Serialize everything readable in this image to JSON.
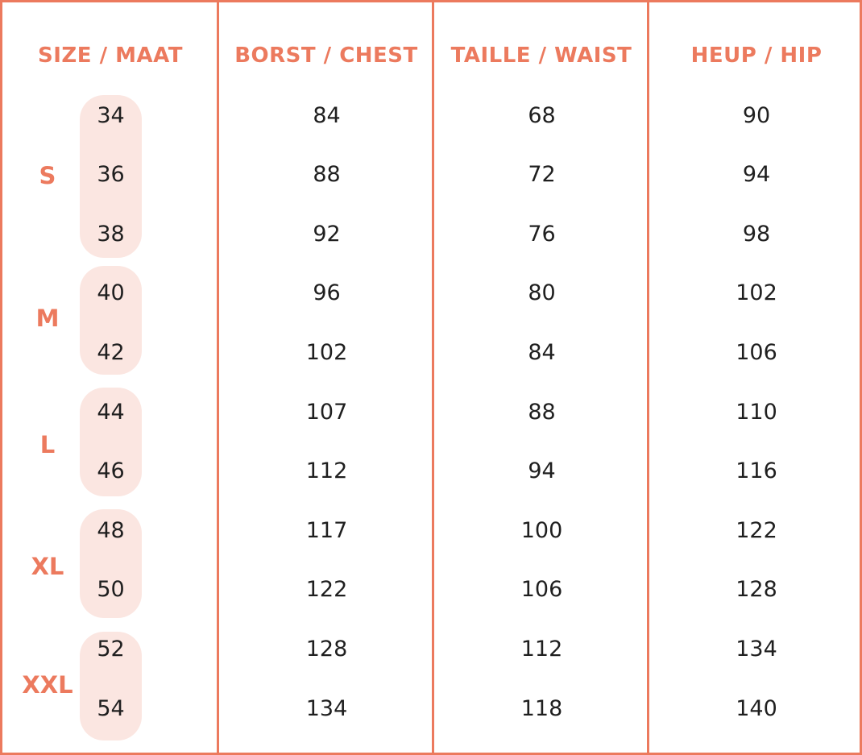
{
  "headers": {
    "size": "SIZE / MAAT",
    "chest": "BORST / CHEST",
    "waist": "TAILLE / WAIST",
    "hip": "HEUP / HIP"
  },
  "groups": [
    {
      "label": "S",
      "sizes": [
        "34",
        "36",
        "38"
      ]
    },
    {
      "label": "M",
      "sizes": [
        "40",
        "42"
      ]
    },
    {
      "label": "L",
      "sizes": [
        "44",
        "46"
      ]
    },
    {
      "label": "XL",
      "sizes": [
        "48",
        "50"
      ]
    },
    {
      "label": "XXL",
      "sizes": [
        "52",
        "54"
      ]
    }
  ],
  "rows": [
    {
      "size": "34",
      "chest": "84",
      "waist": "68",
      "hip": "90"
    },
    {
      "size": "36",
      "chest": "88",
      "waist": "72",
      "hip": "94"
    },
    {
      "size": "38",
      "chest": "92",
      "waist": "76",
      "hip": "98"
    },
    {
      "size": "40",
      "chest": "96",
      "waist": "80",
      "hip": "102"
    },
    {
      "size": "42",
      "chest": "102",
      "waist": "84",
      "hip": "106"
    },
    {
      "size": "44",
      "chest": "107",
      "waist": "88",
      "hip": "110"
    },
    {
      "size": "46",
      "chest": "112",
      "waist": "94",
      "hip": "116"
    },
    {
      "size": "48",
      "chest": "117",
      "waist": "100",
      "hip": "122"
    },
    {
      "size": "50",
      "chest": "122",
      "waist": "106",
      "hip": "128"
    },
    {
      "size": "52",
      "chest": "128",
      "waist": "112",
      "hip": "134"
    },
    {
      "size": "54",
      "chest": "134",
      "waist": "118",
      "hip": "140"
    }
  ],
  "colors": {
    "accent": "#ec7a5e",
    "pill": "#fbe6e1",
    "text": "#1f1f1f"
  }
}
